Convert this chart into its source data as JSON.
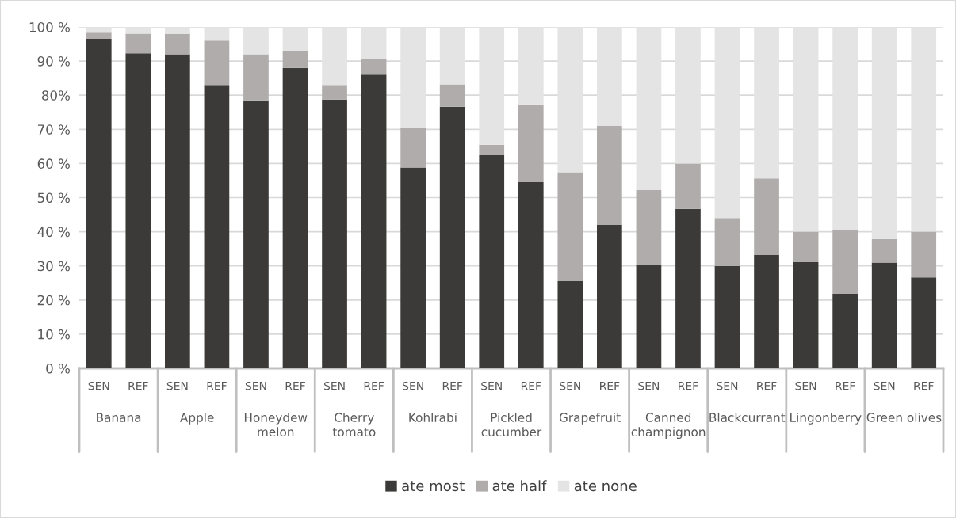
{
  "chart_data": {
    "type": "bar",
    "stacked": true,
    "categories": [
      "SEN",
      "REF",
      "SEN",
      "REF",
      "SEN",
      "REF",
      "SEN",
      "REF",
      "SEN",
      "REF",
      "SEN",
      "REF",
      "SEN",
      "REF",
      "SEN",
      "REF",
      "SEN",
      "REF",
      "SEN",
      "REF",
      "SEN",
      "REF"
    ],
    "annotations": [
      "Banana",
      "Apple",
      "Honeydew\nmelon",
      "Cherry\ntomato",
      "Kohlrabi",
      "Pickled\ncucumber",
      "Grapefruit",
      "Canned\nchampignon",
      "Blackcurrant",
      "Lingonberry",
      "Green olives"
    ],
    "series": [
      {
        "name": "ate most",
        "color": "#3b3a38",
        "values": [
          96.5,
          92.3,
          92,
          83,
          78.5,
          88,
          78.7,
          86,
          58.8,
          76.6,
          62.4,
          54.5,
          25.5,
          42,
          30.3,
          46.7,
          30,
          33.2,
          31.1,
          21.8,
          31,
          26.6
        ]
      },
      {
        "name": "ate half",
        "color": "#afacab",
        "values": [
          1.8,
          5.7,
          6,
          13,
          13.5,
          4.8,
          4.3,
          4.7,
          11.7,
          6.6,
          3.1,
          22.8,
          31.9,
          29,
          21.9,
          13.3,
          14,
          22.4,
          8.9,
          18.8,
          6.9,
          13.4
        ]
      },
      {
        "name": "ate none",
        "color": "#e4e4e4",
        "values": [
          1.7,
          2,
          2,
          4,
          8,
          7.2,
          17,
          9.3,
          29.5,
          16.8,
          34.5,
          22.7,
          42.6,
          29,
          47.8,
          40,
          56,
          44.4,
          60,
          59.4,
          62.1,
          60
        ]
      }
    ],
    "ylim": [
      0,
      100
    ],
    "yticks": [
      {
        "value": 0,
        "label": "0 %"
      },
      {
        "value": 10,
        "label": "10 %"
      },
      {
        "value": 20,
        "label": "20 %"
      },
      {
        "value": 30,
        "label": "30 %"
      },
      {
        "value": 40,
        "label": "40 %"
      },
      {
        "value": 50,
        "label": "50 %"
      },
      {
        "value": 60,
        "label": "60 %"
      },
      {
        "value": 70,
        "label": "70 %"
      },
      {
        "value": 80,
        "label": "80%"
      },
      {
        "value": 90,
        "label": "90 %"
      },
      {
        "value": 100,
        "label": "100 %"
      }
    ],
    "grid": "y",
    "legend": "bottom"
  }
}
